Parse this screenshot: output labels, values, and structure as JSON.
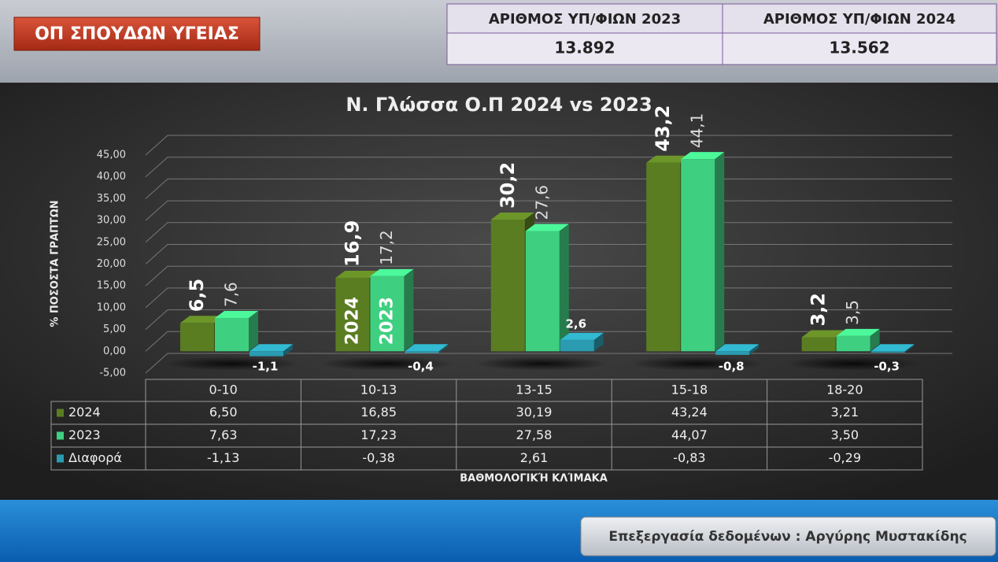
{
  "header": {
    "title": "ΟΠ ΣΠΟΥΔΩΝ ΥΓΕΙΑΣ"
  },
  "stats": {
    "columns": [
      "ΑΡΙΘΜΟΣ ΥΠ/ΦΙΩΝ 2023",
      "ΑΡΙΘΜΟΣ ΥΠ/ΦΙΩΝ 2024"
    ],
    "values": [
      "13.892",
      "13.562"
    ]
  },
  "chart_data": {
    "type": "bar",
    "title": "Ν. Γλώσσα Ο.Π 2024 vs 2023",
    "y_label": "% ΠΟΣΟΣΤΑ ΓΡΑΠΤΩΝ",
    "x_label": "ΒΑΘΜΟΛΟΓΙΚΉ ΚΛΊΜΑΚΑ",
    "categories": [
      "0-10",
      "10-13",
      "13-15",
      "15-18",
      "18-20"
    ],
    "series": [
      {
        "name": "2024",
        "color": "#5b7d22",
        "values": [
          6.5,
          16.85,
          30.19,
          43.24,
          3.21
        ],
        "value_labels": [
          "6,5",
          "16,9",
          "30,2",
          "43,2",
          "3,2"
        ],
        "table_labels": [
          "6,50",
          "16,85",
          "30,19",
          "43,24",
          "3,21"
        ]
      },
      {
        "name": "2023",
        "color": "#3fcf80",
        "values": [
          7.63,
          17.23,
          27.58,
          44.07,
          3.5
        ],
        "value_labels": [
          "7,6",
          "17,2",
          "27,6",
          "44,1",
          "3,5"
        ],
        "table_labels": [
          "7,63",
          "17,23",
          "27,58",
          "44,07",
          "3,50"
        ]
      },
      {
        "name": "Διαφορά",
        "color": "#2a9bb0",
        "values": [
          -1.13,
          -0.38,
          2.61,
          -0.83,
          -0.29
        ],
        "value_labels": [
          "-1,1",
          "-0,4",
          "2,6",
          "-0,8",
          "-0,3"
        ],
        "table_labels": [
          "-1,13",
          "-0,38",
          "2,61",
          "-0,83",
          "-0,29"
        ]
      }
    ],
    "ylim": [
      -5,
      45
    ],
    "yticks": [
      {
        "value": -5,
        "label": "-5,00"
      },
      {
        "value": 0,
        "label": "0,00"
      },
      {
        "value": 5,
        "label": "5,00"
      },
      {
        "value": 10,
        "label": "10,00"
      },
      {
        "value": 15,
        "label": "15,00"
      },
      {
        "value": 20,
        "label": "20,00"
      },
      {
        "value": 25,
        "label": "25,00"
      },
      {
        "value": 30,
        "label": "30,00"
      },
      {
        "value": 35,
        "label": "35,00"
      },
      {
        "value": 40,
        "label": "40,00"
      },
      {
        "value": 45,
        "label": "45,00"
      }
    ],
    "grid": true
  },
  "footer": {
    "credit": "Επεξεργασία δεδομένων : Αργύρης Μυστακίδης"
  }
}
